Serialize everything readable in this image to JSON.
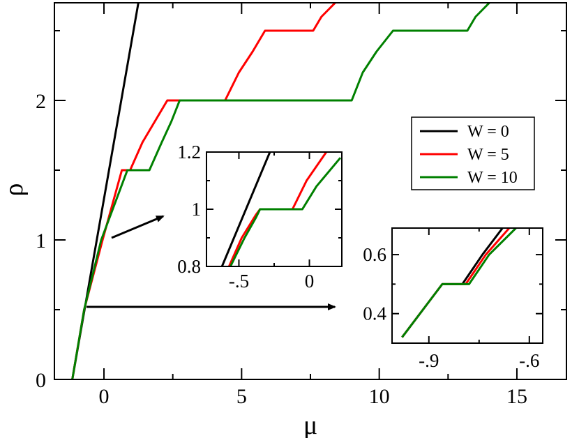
{
  "chart_data": {
    "type": "line",
    "title": "",
    "xlabel": "μ",
    "ylabel": "ρ",
    "xlim": [
      -1.8,
      16.8
    ],
    "ylim": [
      0,
      2.7
    ],
    "xticks": [
      0,
      5,
      10,
      15
    ],
    "yticks": [
      0,
      1,
      2
    ],
    "grid": false,
    "legend_position": "right",
    "series": [
      {
        "name": "W = 0",
        "color": "#000000",
        "x": [
          -1.15,
          1.25
        ],
        "y": [
          0,
          2.7
        ]
      },
      {
        "name": "W = 5",
        "color": "#ff0000",
        "x": [
          -1.15,
          -0.72,
          -0.72,
          -0.05,
          -0.05,
          0.65,
          0.65,
          0.95,
          0.95,
          1.4,
          1.85,
          2.3,
          2.3,
          2.35,
          4.4,
          4.9,
          5.4,
          5.85,
          5.85,
          7.6,
          7.9,
          8.4
        ],
        "y": [
          0,
          0.5,
          0.5,
          1.0,
          1.0,
          1.5,
          1.5,
          1.5,
          1.5,
          1.7,
          1.85,
          2.0,
          2.0,
          2.0,
          2.0,
          2.2,
          2.35,
          2.5,
          2.5,
          2.5,
          2.6,
          2.7
        ]
      },
      {
        "name": "W = 10",
        "color": "#008000",
        "x": [
          -1.15,
          -0.72,
          -0.72,
          -0.1,
          -0.1,
          0.85,
          0.85,
          1.65,
          1.65,
          2.1,
          2.45,
          2.75,
          2.75,
          9.0,
          9.4,
          9.9,
          10.5,
          10.5,
          13.2,
          13.5,
          14.0
        ],
        "y": [
          0,
          0.5,
          0.5,
          1.0,
          1.0,
          1.5,
          1.5,
          1.5,
          1.5,
          1.7,
          1.85,
          2.0,
          2.0,
          2.0,
          2.2,
          2.35,
          2.5,
          2.5,
          2.5,
          2.6,
          2.7
        ]
      }
    ],
    "insets": [
      {
        "xlim": [
          -0.73,
          0.23
        ],
        "ylim": [
          0.8,
          1.2
        ],
        "xticks": [
          -0.5,
          0
        ],
        "yticks": [
          0.8,
          1,
          1.2
        ],
        "series": [
          {
            "name": "W = 0",
            "color": "#000000",
            "x": [
              -0.62,
              -0.28
            ],
            "y": [
              0.8,
              1.2
            ]
          },
          {
            "name": "W = 5",
            "color": "#ff0000",
            "x": [
              -0.57,
              -0.48,
              -0.38,
              -0.35,
              -0.35,
              -0.12,
              -0.02,
              0.12
            ],
            "y": [
              0.8,
              0.9,
              0.98,
              1.0,
              1.0,
              1.0,
              1.1,
              1.2
            ]
          },
          {
            "name": "W = 10",
            "color": "#008000",
            "x": [
              -0.56,
              -0.46,
              -0.38,
              -0.35,
              -0.35,
              -0.05,
              0.05,
              0.22
            ],
            "y": [
              0.8,
              0.9,
              0.97,
              1.0,
              1.0,
              1.0,
              1.08,
              1.18
            ]
          }
        ]
      },
      {
        "xlim": [
          -1.01,
          -0.56
        ],
        "ylim": [
          0.3,
          0.69
        ],
        "xticks": [
          -0.9,
          -0.6
        ],
        "yticks": [
          0.4,
          0.6
        ],
        "series": [
          {
            "name": "W = 0",
            "color": "#000000",
            "x": [
              -0.98,
              -0.9,
              -0.86,
              -0.8,
              -0.74,
              -0.68
            ],
            "y": [
              0.32,
              0.44,
              0.5,
              0.5,
              0.6,
              0.69
            ]
          },
          {
            "name": "W = 5",
            "color": "#ff0000",
            "x": [
              -0.98,
              -0.9,
              -0.86,
              -0.79,
              -0.73,
              -0.66
            ],
            "y": [
              0.32,
              0.44,
              0.5,
              0.5,
              0.6,
              0.69
            ]
          },
          {
            "name": "W = 10",
            "color": "#008000",
            "x": [
              -0.98,
              -0.9,
              -0.86,
              -0.78,
              -0.72,
              -0.64
            ],
            "y": [
              0.32,
              0.44,
              0.5,
              0.5,
              0.6,
              0.69
            ]
          }
        ]
      }
    ]
  }
}
